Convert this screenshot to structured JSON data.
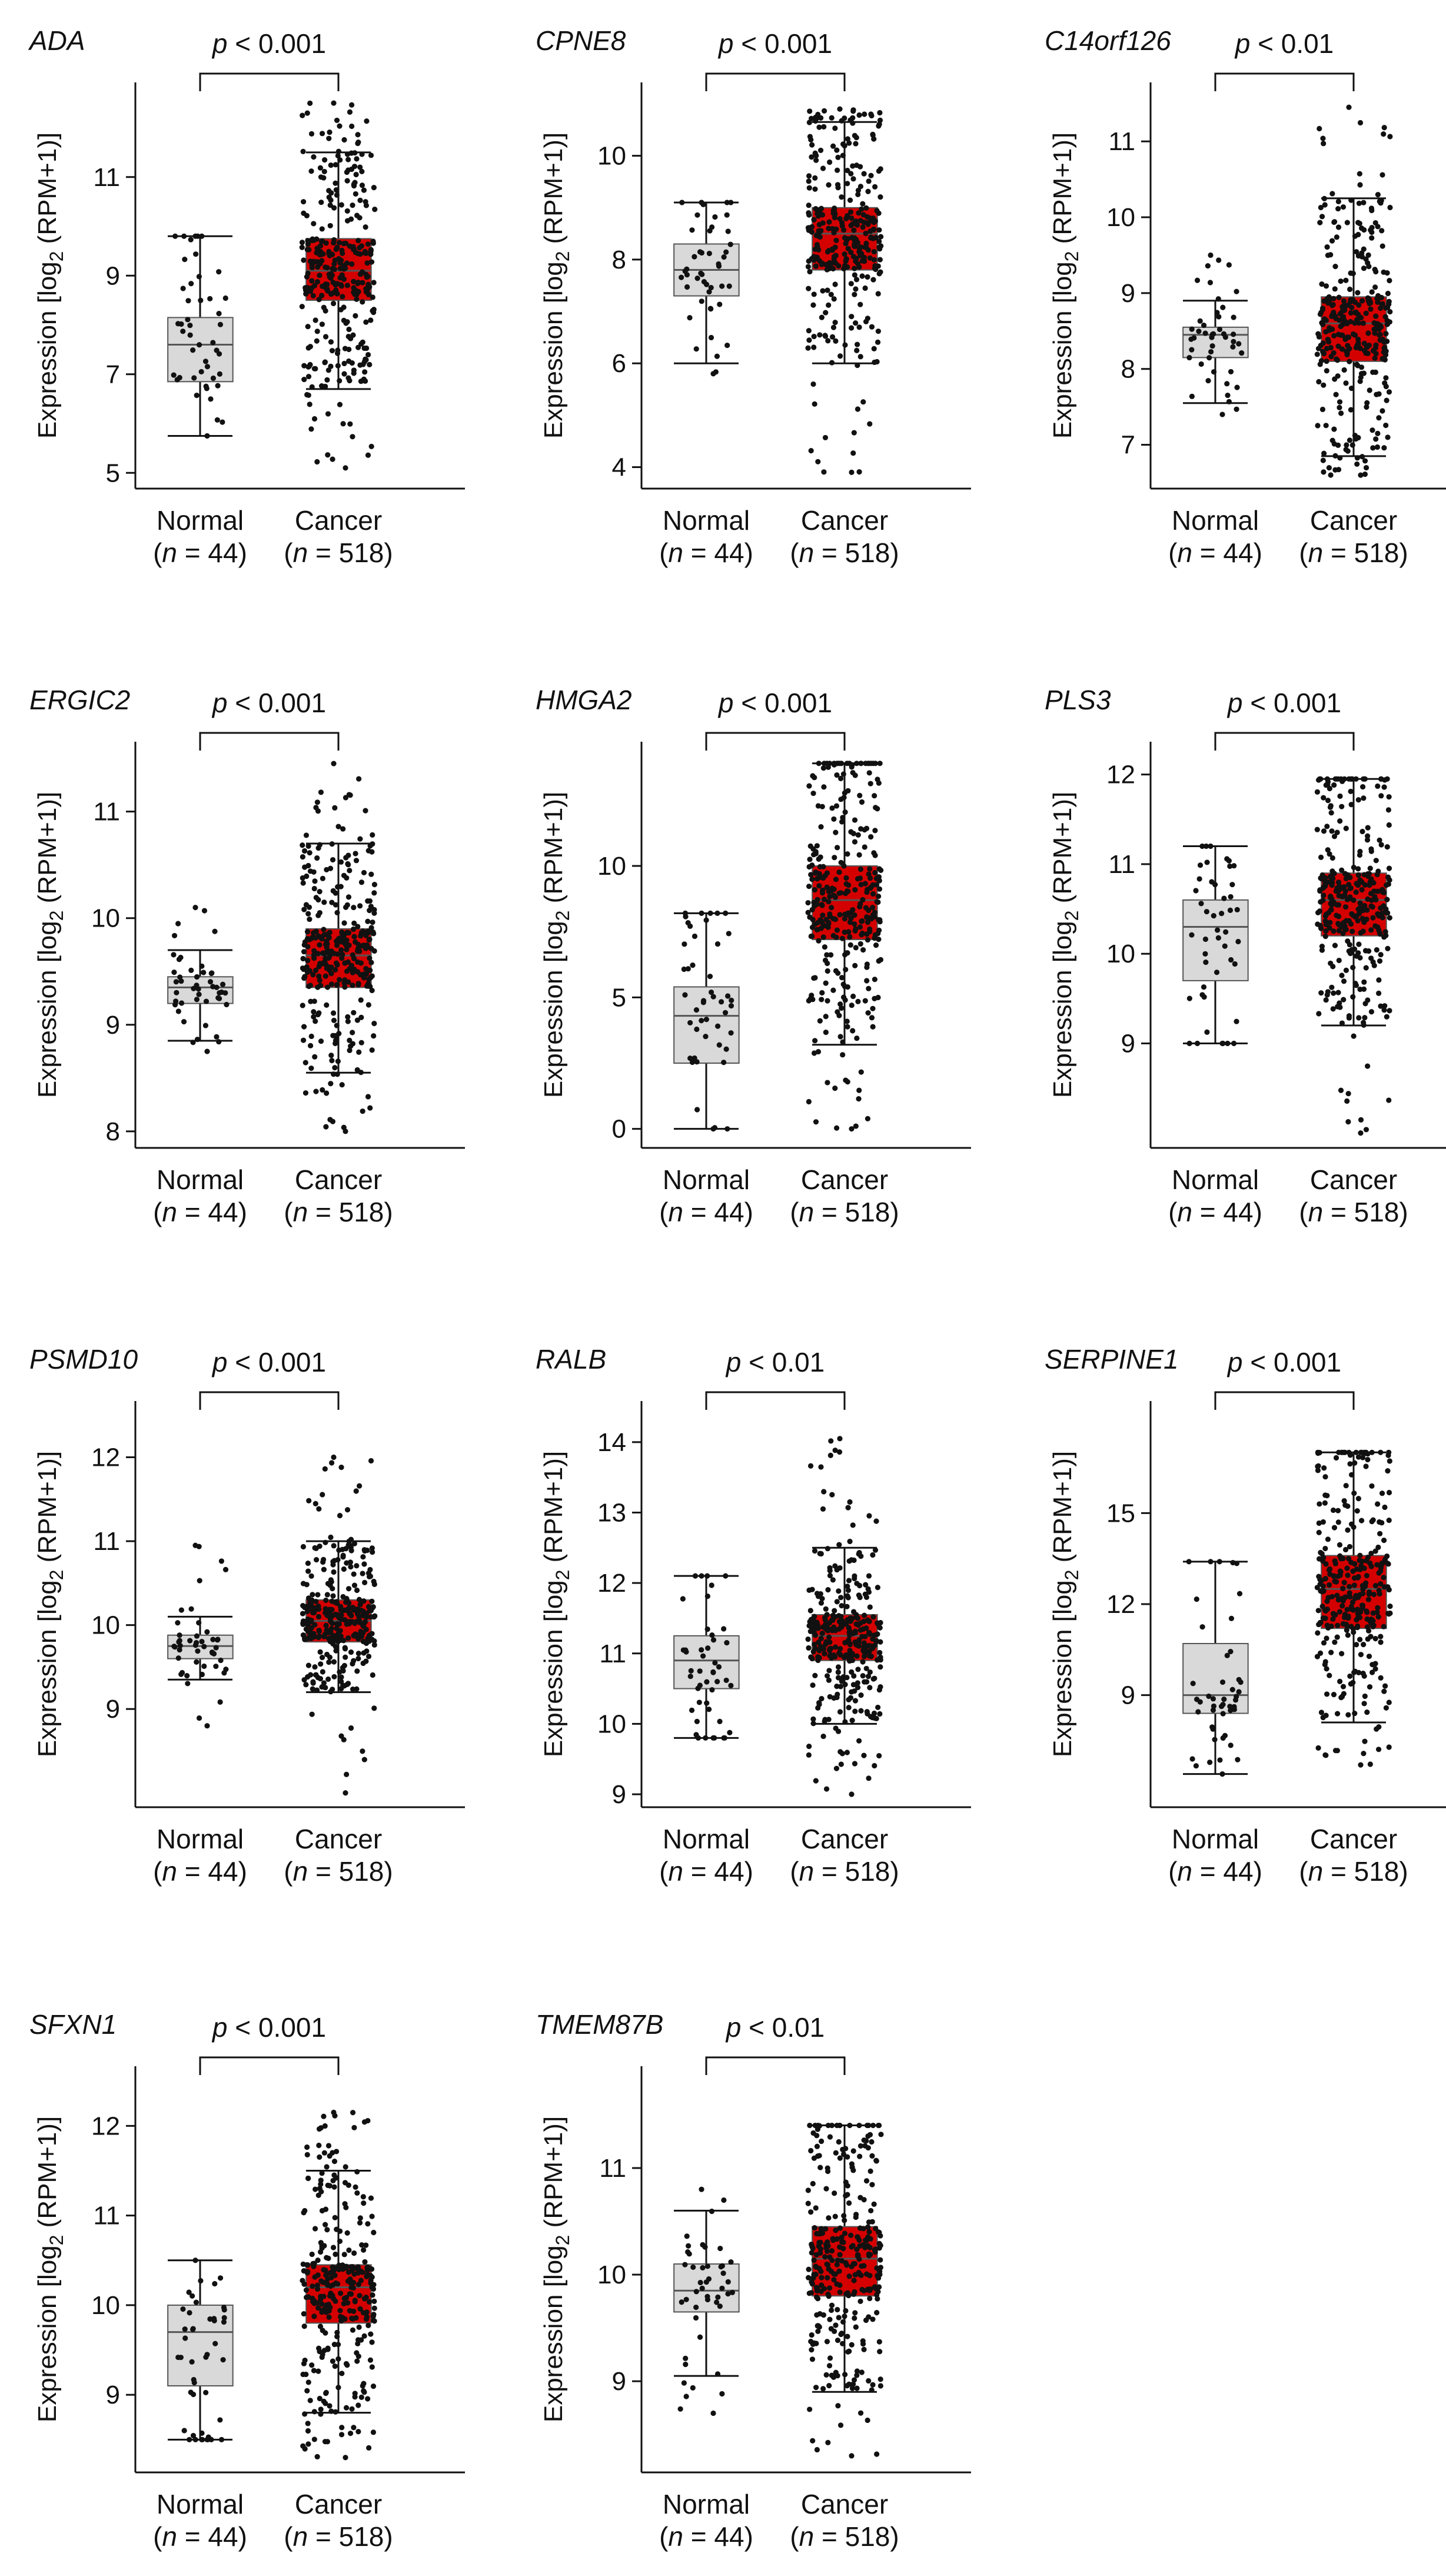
{
  "figure": {
    "ylabel_prefix": "Expression [log",
    "ylabel_sub": "2",
    "ylabel_suffix": " (RPM+1)]",
    "group_labels": [
      "Normal",
      "Cancer"
    ],
    "group_n": [
      "(n = 44)",
      "(n = 518)"
    ]
  },
  "colors": {
    "normal_box": "#d9d9d9",
    "cancer_box": "#d40000",
    "points": "#111111",
    "axis": "#111111"
  },
  "chart_data": [
    {
      "type": "box",
      "title": "ADA",
      "pvalue": "p < 0.001",
      "ylim": [
        4.8,
        12.8
      ],
      "yticks": [
        5,
        7,
        9,
        11
      ],
      "groups": [
        {
          "name": "Normal",
          "n": 44,
          "whisker_low": 5.75,
          "q1": 6.85,
          "median": 7.6,
          "q3": 8.15,
          "whisker_high": 9.8,
          "range": [
            5.75,
            9.8
          ]
        },
        {
          "name": "Cancer",
          "n": 518,
          "whisker_low": 6.7,
          "q1": 8.5,
          "median": 9.1,
          "q3": 9.75,
          "whisker_high": 11.5,
          "range": [
            5.1,
            12.5
          ]
        }
      ]
    },
    {
      "type": "box",
      "title": "CPNE8",
      "pvalue": "p < 0.001",
      "ylim": [
        3.7,
        11.3
      ],
      "yticks": [
        4,
        6,
        8,
        10
      ],
      "groups": [
        {
          "name": "Normal",
          "n": 44,
          "whisker_low": 6.0,
          "q1": 7.3,
          "median": 7.8,
          "q3": 8.3,
          "whisker_high": 9.1,
          "range": [
            5.8,
            9.1
          ]
        },
        {
          "name": "Cancer",
          "n": 518,
          "whisker_low": 6.0,
          "q1": 7.8,
          "median": 8.5,
          "q3": 9.0,
          "whisker_high": 10.65,
          "range": [
            3.9,
            10.9
          ]
        }
      ]
    },
    {
      "type": "box",
      "title": "C14orf126",
      "pvalue": "p < 0.01",
      "ylim": [
        6.5,
        11.7
      ],
      "yticks": [
        7,
        8,
        9,
        10,
        11
      ],
      "groups": [
        {
          "name": "Normal",
          "n": 44,
          "whisker_low": 7.55,
          "q1": 8.15,
          "median": 8.45,
          "q3": 8.55,
          "whisker_high": 8.9,
          "range": [
            7.4,
            9.5
          ]
        },
        {
          "name": "Cancer",
          "n": 518,
          "whisker_low": 6.85,
          "q1": 8.1,
          "median": 8.6,
          "q3": 8.95,
          "whisker_high": 10.25,
          "range": [
            6.6,
            11.45
          ]
        }
      ]
    },
    {
      "type": "box",
      "title": "ERGIC2",
      "pvalue": "p < 0.001",
      "ylim": [
        7.9,
        11.6
      ],
      "yticks": [
        8,
        9,
        10,
        11
      ],
      "groups": [
        {
          "name": "Normal",
          "n": 44,
          "whisker_low": 8.85,
          "q1": 9.2,
          "median": 9.35,
          "q3": 9.45,
          "whisker_high": 9.7,
          "range": [
            8.75,
            10.1
          ]
        },
        {
          "name": "Cancer",
          "n": 518,
          "whisker_low": 8.55,
          "q1": 9.35,
          "median": 9.65,
          "q3": 9.9,
          "whisker_high": 10.7,
          "range": [
            8.0,
            11.45
          ]
        }
      ]
    },
    {
      "type": "box",
      "title": "HMGA2",
      "pvalue": "p < 0.001",
      "ylim": [
        -0.5,
        14.5
      ],
      "yticks": [
        0,
        5,
        10
      ],
      "groups": [
        {
          "name": "Normal",
          "n": 44,
          "whisker_low": 0.0,
          "q1": 2.5,
          "median": 4.3,
          "q3": 5.4,
          "whisker_high": 8.2,
          "range": [
            0.0,
            8.2
          ]
        },
        {
          "name": "Cancer",
          "n": 518,
          "whisker_low": 3.2,
          "q1": 7.2,
          "median": 8.7,
          "q3": 10.0,
          "whisker_high": 13.9,
          "range": [
            0.0,
            13.9
          ]
        }
      ]
    },
    {
      "type": "box",
      "title": "PLS3",
      "pvalue": "p < 0.001",
      "ylim": [
        7.9,
        12.3
      ],
      "yticks": [
        9,
        10,
        11,
        12
      ],
      "groups": [
        {
          "name": "Normal",
          "n": 44,
          "whisker_low": 9.0,
          "q1": 9.7,
          "median": 10.3,
          "q3": 10.6,
          "whisker_high": 11.2,
          "range": [
            9.0,
            11.2
          ]
        },
        {
          "name": "Cancer",
          "n": 518,
          "whisker_low": 9.2,
          "q1": 10.2,
          "median": 10.6,
          "q3": 10.9,
          "whisker_high": 11.95,
          "range": [
            8.0,
            11.95
          ]
        }
      ]
    },
    {
      "type": "box",
      "title": "PSMD10",
      "pvalue": "p < 0.001",
      "ylim": [
        7.9,
        12.6
      ],
      "yticks": [
        9,
        10,
        11,
        12
      ],
      "groups": [
        {
          "name": "Normal",
          "n": 44,
          "whisker_low": 9.35,
          "q1": 9.6,
          "median": 9.75,
          "q3": 9.88,
          "whisker_high": 10.1,
          "range": [
            8.8,
            10.95
          ]
        },
        {
          "name": "Cancer",
          "n": 518,
          "whisker_low": 9.2,
          "q1": 9.8,
          "median": 10.05,
          "q3": 10.3,
          "whisker_high": 11.0,
          "range": [
            8.0,
            12.0
          ]
        }
      ]
    },
    {
      "type": "box",
      "title": "RALB",
      "pvalue": "p < 0.01",
      "ylim": [
        8.9,
        14.5
      ],
      "yticks": [
        9,
        10,
        11,
        12,
        13,
        14
      ],
      "groups": [
        {
          "name": "Normal",
          "n": 44,
          "whisker_low": 9.8,
          "q1": 10.5,
          "median": 10.9,
          "q3": 11.25,
          "whisker_high": 12.1,
          "range": [
            9.8,
            12.1
          ]
        },
        {
          "name": "Cancer",
          "n": 518,
          "whisker_low": 10.0,
          "q1": 10.9,
          "median": 11.25,
          "q3": 11.55,
          "whisker_high": 12.5,
          "range": [
            9.0,
            14.05
          ]
        }
      ]
    },
    {
      "type": "box",
      "title": "SERPINE1",
      "pvalue": "p < 0.001",
      "ylim": [
        5.5,
        18.5
      ],
      "yticks": [
        9,
        12,
        15
      ],
      "groups": [
        {
          "name": "Normal",
          "n": 44,
          "whisker_low": 6.4,
          "q1": 8.4,
          "median": 9.0,
          "q3": 10.7,
          "whisker_high": 13.4,
          "range": [
            6.4,
            13.4
          ]
        },
        {
          "name": "Cancer",
          "n": 518,
          "whisker_low": 8.1,
          "q1": 11.2,
          "median": 12.5,
          "q3": 13.6,
          "whisker_high": 17.0,
          "range": [
            6.7,
            17.0
          ]
        }
      ]
    },
    {
      "type": "box",
      "title": "SFXN1",
      "pvalue": "p < 0.001",
      "ylim": [
        8.2,
        12.6
      ],
      "yticks": [
        9,
        10,
        11,
        12
      ],
      "groups": [
        {
          "name": "Normal",
          "n": 44,
          "whisker_low": 8.5,
          "q1": 9.1,
          "median": 9.7,
          "q3": 10.0,
          "whisker_high": 10.5,
          "range": [
            8.5,
            10.5
          ]
        },
        {
          "name": "Cancer",
          "n": 518,
          "whisker_low": 8.8,
          "q1": 9.8,
          "median": 10.2,
          "q3": 10.45,
          "whisker_high": 11.5,
          "range": [
            8.3,
            12.15
          ]
        }
      ]
    },
    {
      "type": "box",
      "title": "TMEM87B",
      "pvalue": "p < 0.01",
      "ylim": [
        8.2,
        11.9
      ],
      "yticks": [
        9,
        10,
        11
      ],
      "groups": [
        {
          "name": "Normal",
          "n": 44,
          "whisker_low": 9.05,
          "q1": 9.65,
          "median": 9.85,
          "q3": 10.1,
          "whisker_high": 10.6,
          "range": [
            8.7,
            10.8
          ]
        },
        {
          "name": "Cancer",
          "n": 518,
          "whisker_low": 8.9,
          "q1": 9.8,
          "median": 10.15,
          "q3": 10.45,
          "whisker_high": 11.4,
          "range": [
            8.3,
            11.4
          ]
        }
      ]
    }
  ]
}
